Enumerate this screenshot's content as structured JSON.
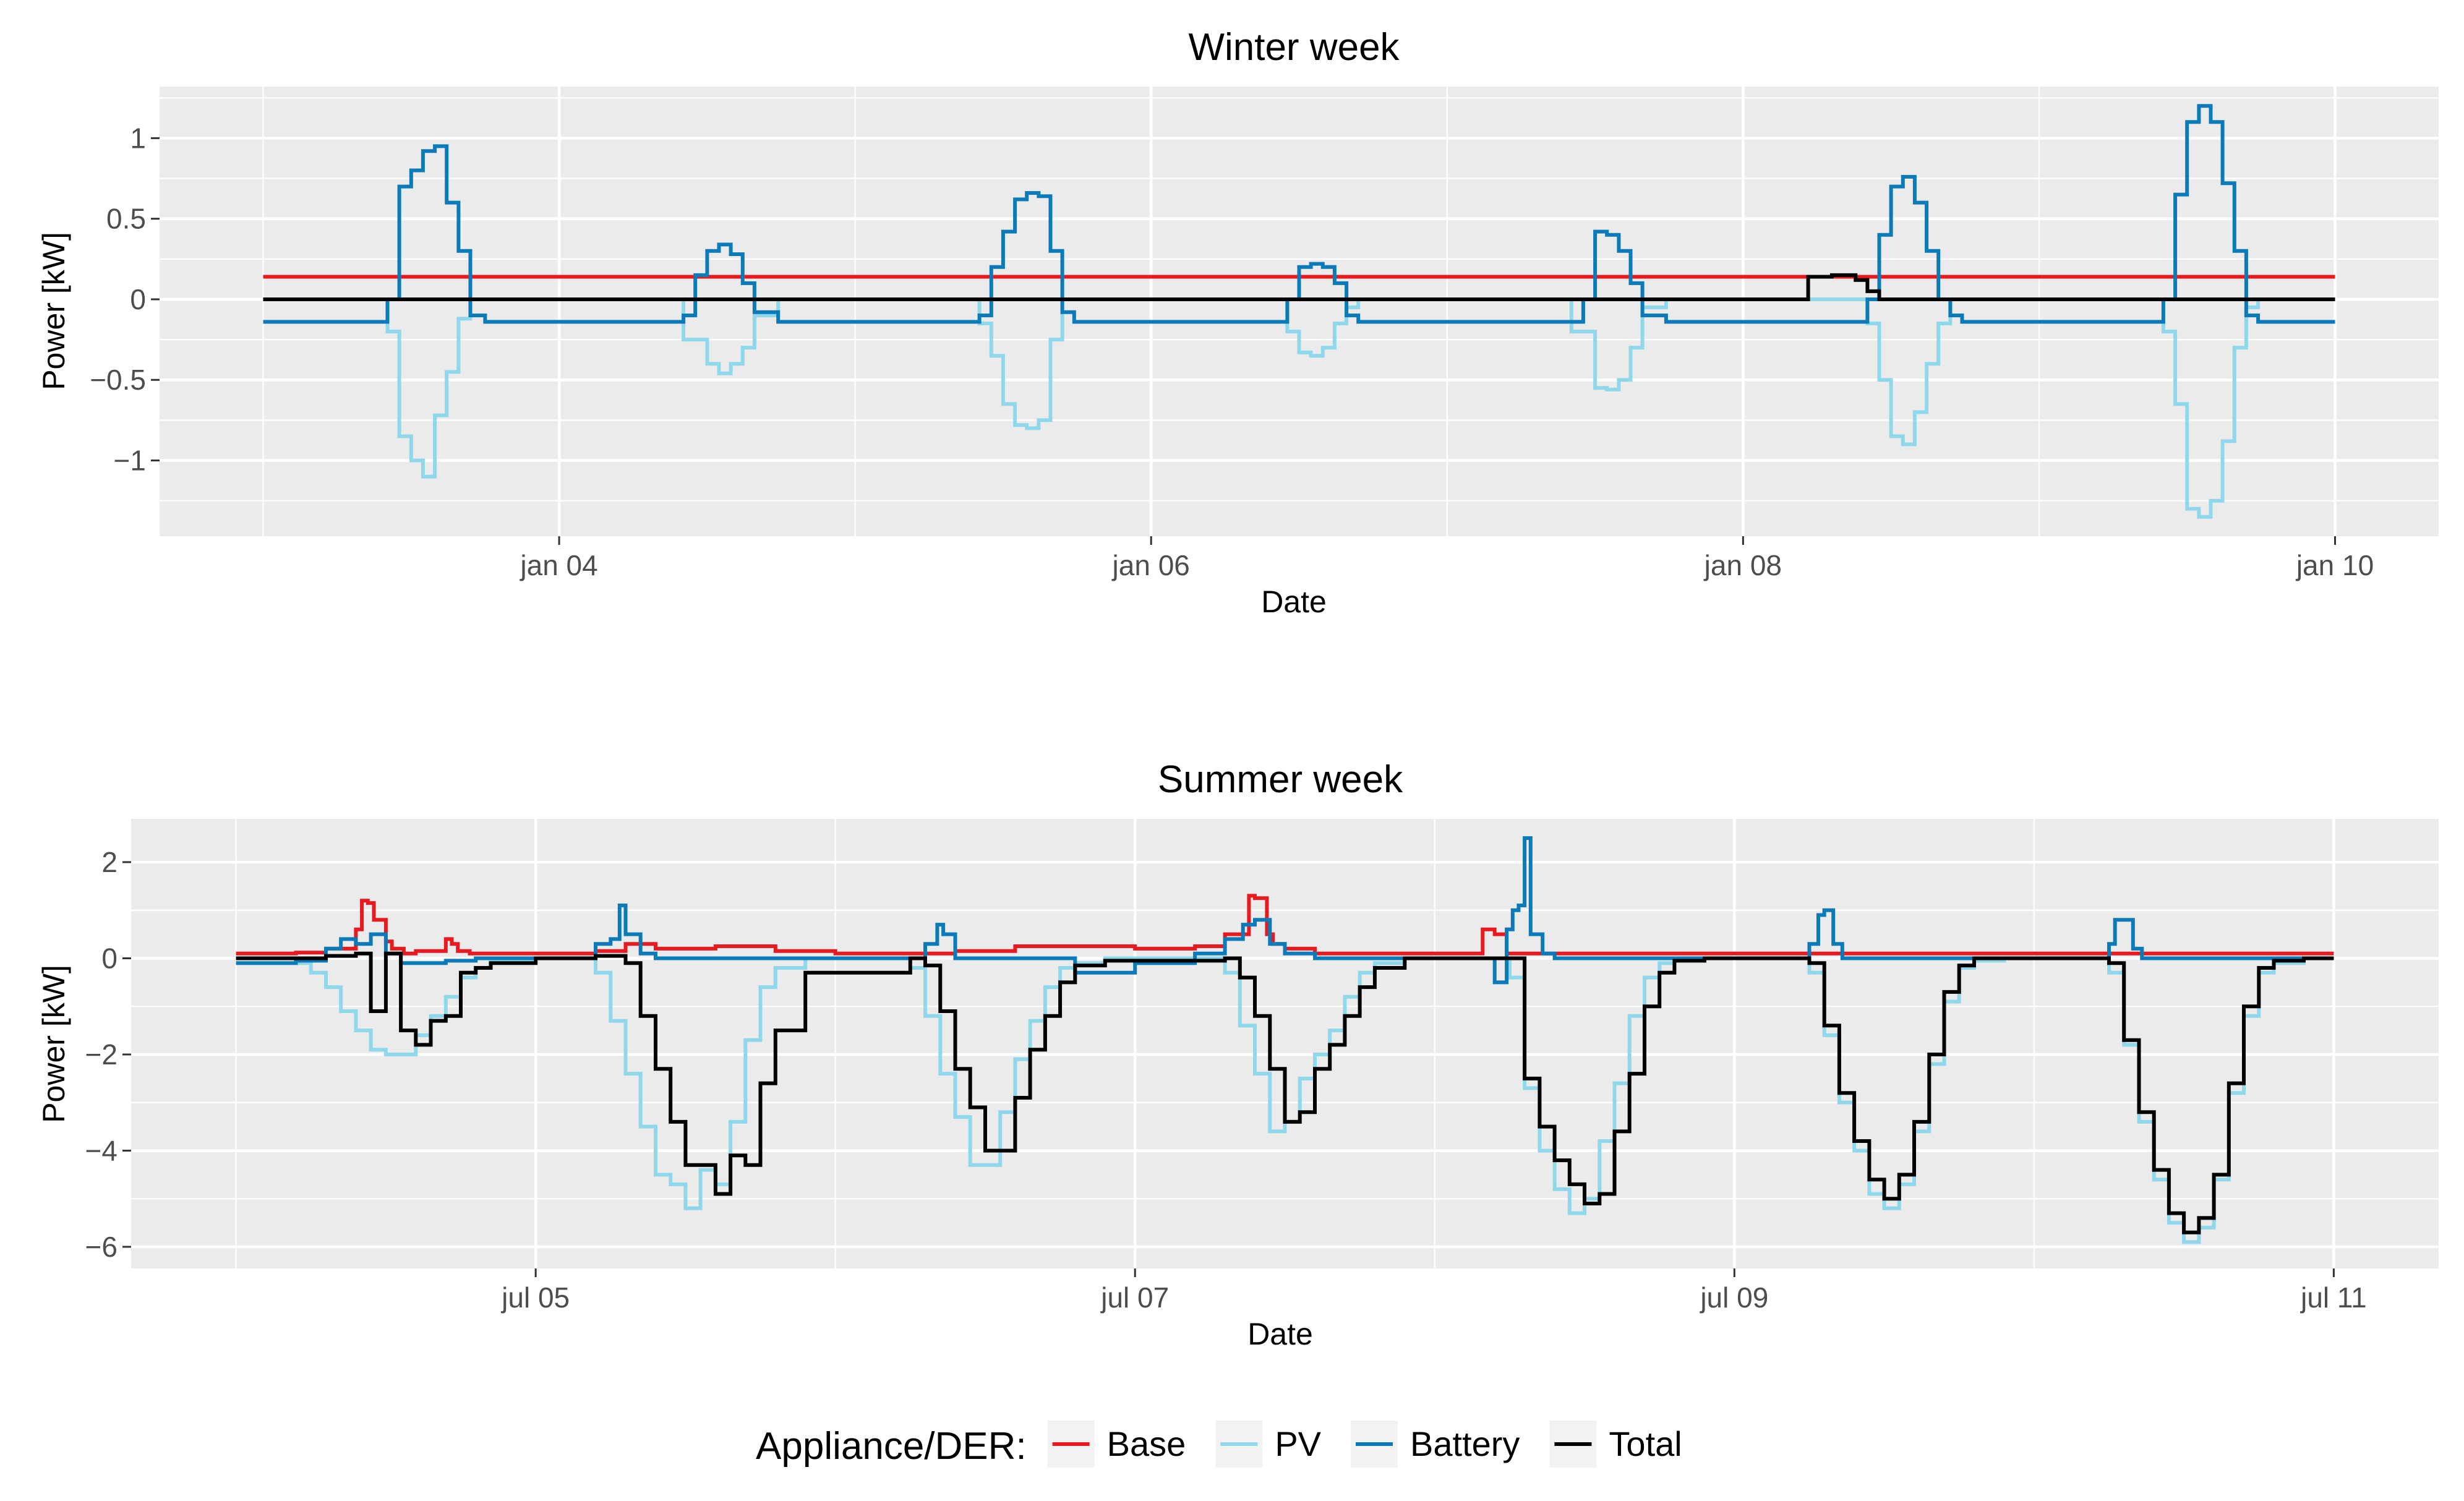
{
  "colors": {
    "panel_bg": "#EBEBEB",
    "grid": "#FFFFFF",
    "axis_text": "#4D4D4D",
    "Base": "#E8191F",
    "PV": "#8FD8EC",
    "Battery": "#0A7AB8",
    "Total": "#000000"
  },
  "legend": {
    "title": "Appliance/DER:",
    "entries": [
      "Base",
      "PV",
      "Battery",
      "Total"
    ]
  },
  "chart_data": [
    {
      "type": "line",
      "title": "Winter week",
      "xlabel": "Date",
      "ylabel": "Power [kW]",
      "xlim": [
        -0.35,
        7.35
      ],
      "ylim": [
        -1.47,
        1.32
      ],
      "x_unit": "days since jan 03 00:00",
      "x_ticks": [
        1,
        3,
        5,
        7
      ],
      "x_tick_labels": [
        "jan 04",
        "jan 06",
        "jan 08",
        "jan 10"
      ],
      "y_ticks": [
        -1,
        -0.5,
        0,
        0.5,
        1
      ],
      "y_tick_labels": [
        "−1",
        "−0.5",
        "0",
        "0.5",
        "1"
      ],
      "series": [
        {
          "name": "Base",
          "x": [
            0,
            7
          ],
          "y": [
            0.14,
            0.14
          ]
        },
        {
          "name": "PV",
          "x": [
            0,
            0.42,
            0.46,
            0.5,
            0.54,
            0.58,
            0.62,
            0.66,
            0.7,
            0.74,
            1.42,
            1.5,
            1.54,
            1.58,
            1.62,
            1.66,
            1.74,
            2.42,
            2.46,
            2.5,
            2.54,
            2.58,
            2.62,
            2.66,
            2.7,
            2.74,
            3.46,
            3.5,
            3.54,
            3.58,
            3.62,
            3.66,
            3.7,
            4.42,
            4.5,
            4.54,
            4.58,
            4.62,
            4.66,
            4.74,
            5.42,
            5.46,
            5.5,
            5.54,
            5.58,
            5.62,
            5.66,
            5.7,
            5.74,
            6.42,
            6.46,
            6.5,
            6.54,
            6.58,
            6.62,
            6.66,
            6.7,
            6.74,
            7
          ],
          "y": [
            0,
            -0.2,
            -0.85,
            -1.0,
            -1.1,
            -0.72,
            -0.45,
            -0.12,
            0,
            0,
            -0.25,
            -0.4,
            -0.46,
            -0.4,
            -0.3,
            -0.1,
            0,
            -0.15,
            -0.35,
            -0.65,
            -0.78,
            -0.8,
            -0.75,
            -0.25,
            0,
            0,
            -0.2,
            -0.33,
            -0.35,
            -0.3,
            -0.15,
            -0.05,
            0,
            -0.2,
            -0.55,
            -0.56,
            -0.5,
            -0.3,
            -0.05,
            0,
            -0.15,
            -0.5,
            -0.85,
            -0.9,
            -0.7,
            -0.4,
            -0.15,
            0,
            0,
            -0.2,
            -0.65,
            -1.3,
            -1.35,
            -1.25,
            -0.88,
            -0.3,
            -0.05,
            0,
            0
          ]
        },
        {
          "name": "Battery",
          "x": [
            0,
            0.4,
            0.42,
            0.46,
            0.5,
            0.54,
            0.58,
            0.62,
            0.66,
            0.7,
            0.75,
            1.42,
            1.46,
            1.5,
            1.54,
            1.58,
            1.62,
            1.66,
            1.74,
            2.42,
            2.46,
            2.5,
            2.54,
            2.58,
            2.62,
            2.66,
            2.7,
            2.74,
            3.46,
            3.5,
            3.54,
            3.58,
            3.62,
            3.66,
            3.7,
            4.46,
            4.5,
            4.54,
            4.58,
            4.62,
            4.66,
            4.74,
            5.42,
            5.46,
            5.5,
            5.54,
            5.58,
            5.62,
            5.66,
            5.7,
            5.74,
            6.42,
            6.46,
            6.5,
            6.54,
            6.58,
            6.62,
            6.66,
            6.7,
            6.74,
            7
          ],
          "y": [
            -0.14,
            -0.14,
            0.0,
            0.7,
            0.8,
            0.92,
            0.95,
            0.6,
            0.3,
            -0.1,
            -0.14,
            -0.1,
            0.15,
            0.3,
            0.34,
            0.28,
            0.1,
            -0.08,
            -0.14,
            -0.1,
            0.2,
            0.42,
            0.62,
            0.66,
            0.64,
            0.3,
            -0.08,
            -0.14,
            0.0,
            0.2,
            0.22,
            0.2,
            0.1,
            -0.1,
            -0.14,
            0.0,
            0.42,
            0.4,
            0.3,
            0.1,
            -0.1,
            -0.14,
            0.0,
            0.4,
            0.7,
            0.76,
            0.6,
            0.3,
            0.0,
            -0.1,
            -0.14,
            0.0,
            0.65,
            1.1,
            1.2,
            1.1,
            0.72,
            0.3,
            -0.1,
            -0.14,
            -0.14
          ]
        },
        {
          "name": "Total",
          "x": [
            0,
            5.2,
            5.22,
            5.3,
            5.36,
            5.38,
            5.42,
            5.46,
            7
          ],
          "y": [
            0,
            0,
            0.14,
            0.15,
            0.15,
            0.12,
            0.05,
            0,
            0
          ]
        }
      ]
    },
    {
      "type": "line",
      "title": "Summer week",
      "xlabel": "Date",
      "ylabel": "Power [kW]",
      "xlim": [
        -0.35,
        7.35
      ],
      "ylim": [
        -6.45,
        2.9
      ],
      "x_unit": "days since jul 04 00:00",
      "x_ticks": [
        1,
        3,
        5,
        7
      ],
      "x_tick_labels": [
        "jul 05",
        "jul 07",
        "jul 09",
        "jul 11"
      ],
      "y_ticks": [
        -6,
        -4,
        -2,
        0,
        2
      ],
      "y_tick_labels": [
        "−6",
        "−4",
        "−2",
        "0",
        "2"
      ],
      "series": [
        {
          "name": "Base",
          "x": [
            0,
            0.2,
            0.3,
            0.4,
            0.42,
            0.44,
            0.46,
            0.5,
            0.52,
            0.56,
            0.6,
            0.7,
            0.72,
            0.74,
            0.78,
            1.2,
            1.3,
            1.4,
            1.6,
            1.8,
            2.0,
            2.4,
            2.6,
            3.0,
            3.2,
            3.3,
            3.38,
            3.4,
            3.44,
            3.46,
            3.5,
            3.6,
            4.0,
            4.16,
            4.2,
            4.24,
            4.3,
            7
          ],
          "y": [
            0.1,
            0.12,
            0.2,
            0.6,
            1.2,
            1.15,
            0.8,
            0.35,
            0.2,
            0.1,
            0.15,
            0.4,
            0.3,
            0.15,
            0.1,
            0.15,
            0.3,
            0.2,
            0.25,
            0.15,
            0.1,
            0.15,
            0.25,
            0.2,
            0.25,
            0.5,
            1.3,
            1.25,
            0.5,
            0.3,
            0.2,
            0.1,
            0.1,
            0.6,
            0.5,
            0.1,
            0.1,
            0.1
          ]
        },
        {
          "name": "PV",
          "x": [
            0,
            0.2,
            0.25,
            0.3,
            0.35,
            0.4,
            0.45,
            0.5,
            0.6,
            0.65,
            0.7,
            0.75,
            0.8,
            0.85,
            1.0,
            1.2,
            1.25,
            1.3,
            1.35,
            1.4,
            1.45,
            1.5,
            1.55,
            1.6,
            1.65,
            1.7,
            1.75,
            1.8,
            1.9,
            2.25,
            2.3,
            2.35,
            2.4,
            2.45,
            2.5,
            2.55,
            2.6,
            2.65,
            2.7,
            2.75,
            2.8,
            2.9,
            3.3,
            3.35,
            3.4,
            3.45,
            3.5,
            3.55,
            3.6,
            3.65,
            3.7,
            3.75,
            3.8,
            3.9,
            4.25,
            4.3,
            4.35,
            4.4,
            4.45,
            4.5,
            4.55,
            4.6,
            4.65,
            4.7,
            4.75,
            4.8,
            4.9,
            5.25,
            5.3,
            5.35,
            5.4,
            5.45,
            5.5,
            5.55,
            5.6,
            5.65,
            5.7,
            5.75,
            5.8,
            5.9,
            6.25,
            6.3,
            6.35,
            6.4,
            6.45,
            6.5,
            6.55,
            6.6,
            6.65,
            6.7,
            6.75,
            6.8,
            6.9,
            7
          ],
          "y": [
            0,
            -0.1,
            -0.3,
            -0.6,
            -1.1,
            -1.5,
            -1.9,
            -2.0,
            -1.6,
            -1.2,
            -0.8,
            -0.4,
            -0.2,
            -0.05,
            0,
            -0.3,
            -1.3,
            -2.4,
            -3.5,
            -4.5,
            -4.7,
            -5.2,
            -4.4,
            -4.7,
            -3.4,
            -1.7,
            -0.6,
            -0.2,
            0,
            -0.2,
            -1.2,
            -2.4,
            -3.3,
            -4.3,
            -4.3,
            -3.2,
            -2.1,
            -1.3,
            -0.6,
            -0.2,
            -0.1,
            0,
            -0.3,
            -1.4,
            -2.4,
            -3.6,
            -3.4,
            -2.5,
            -2.0,
            -1.5,
            -0.8,
            -0.3,
            -0.1,
            0,
            -0.4,
            -2.7,
            -4.0,
            -4.8,
            -5.3,
            -5.0,
            -3.8,
            -2.6,
            -1.2,
            -0.4,
            -0.1,
            0,
            0,
            -0.3,
            -1.6,
            -3.0,
            -4.0,
            -4.9,
            -5.2,
            -4.7,
            -3.6,
            -2.2,
            -0.9,
            -0.2,
            -0.05,
            0,
            -0.3,
            -1.8,
            -3.4,
            -4.6,
            -5.5,
            -5.9,
            -5.6,
            -4.6,
            -2.8,
            -1.2,
            -0.3,
            -0.1,
            0,
            0
          ]
        },
        {
          "name": "Battery",
          "x": [
            0,
            0.2,
            0.3,
            0.35,
            0.4,
            0.45,
            0.5,
            0.55,
            0.6,
            0.7,
            0.8,
            1.0,
            1.2,
            1.25,
            1.28,
            1.3,
            1.35,
            1.4,
            2.2,
            2.3,
            2.34,
            2.36,
            2.4,
            2.8,
            3.0,
            3.2,
            3.3,
            3.36,
            3.4,
            3.45,
            3.5,
            3.6,
            4.0,
            4.2,
            4.24,
            4.26,
            4.28,
            4.3,
            4.32,
            4.36,
            4.4,
            5.2,
            5.25,
            5.28,
            5.3,
            5.33,
            5.36,
            5.4,
            6.2,
            6.25,
            6.27,
            6.3,
            6.33,
            6.36,
            6.4,
            7
          ],
          "y": [
            -0.1,
            -0.05,
            0.2,
            0.4,
            0.3,
            0.5,
            0.1,
            -0.1,
            -0.1,
            -0.05,
            0,
            0,
            0.3,
            0.4,
            1.1,
            0.5,
            0.1,
            0,
            0,
            0.3,
            0.7,
            0.5,
            0,
            -0.3,
            -0.1,
            0.1,
            0.4,
            0.7,
            0.8,
            0.3,
            0.1,
            0,
            0,
            -0.5,
            0.6,
            1.0,
            1.1,
            2.5,
            0.5,
            0.1,
            0,
            0,
            0.3,
            0.9,
            1.0,
            0.3,
            0,
            0,
            0,
            0.3,
            0.8,
            0.8,
            0.2,
            0,
            0,
            0
          ]
        },
        {
          "name": "Total",
          "x": [
            0,
            0.2,
            0.3,
            0.4,
            0.45,
            0.5,
            0.55,
            0.6,
            0.65,
            0.7,
            0.75,
            0.8,
            0.85,
            1.0,
            1.2,
            1.25,
            1.3,
            1.35,
            1.4,
            1.45,
            1.5,
            1.55,
            1.6,
            1.65,
            1.7,
            1.75,
            1.8,
            1.9,
            2.25,
            2.3,
            2.35,
            2.4,
            2.45,
            2.5,
            2.55,
            2.6,
            2.65,
            2.7,
            2.75,
            2.8,
            2.9,
            3.3,
            3.35,
            3.4,
            3.45,
            3.5,
            3.55,
            3.6,
            3.65,
            3.7,
            3.75,
            3.8,
            3.9,
            4.25,
            4.3,
            4.35,
            4.4,
            4.45,
            4.5,
            4.55,
            4.6,
            4.65,
            4.7,
            4.75,
            4.8,
            4.9,
            5.25,
            5.3,
            5.35,
            5.4,
            5.45,
            5.5,
            5.55,
            5.6,
            5.65,
            5.7,
            5.75,
            5.8,
            5.9,
            6.25,
            6.3,
            6.35,
            6.4,
            6.45,
            6.5,
            6.55,
            6.6,
            6.65,
            6.7,
            6.75,
            6.8,
            6.9,
            7
          ],
          "y": [
            0,
            0,
            0.05,
            0.1,
            -1.1,
            0.1,
            -1.5,
            -1.8,
            -1.3,
            -1.2,
            -0.3,
            -0.2,
            -0.1,
            0,
            0.05,
            0.05,
            -0.1,
            -1.2,
            -2.3,
            -3.4,
            -4.3,
            -4.3,
            -4.9,
            -4.1,
            -4.3,
            -2.6,
            -1.5,
            -0.3,
            0,
            -0.15,
            -1.1,
            -2.3,
            -3.1,
            -4.0,
            -4.0,
            -2.9,
            -1.9,
            -1.2,
            -0.5,
            -0.15,
            -0.05,
            0,
            -0.4,
            -1.2,
            -2.3,
            -3.4,
            -3.2,
            -2.3,
            -1.8,
            -1.2,
            -0.6,
            -0.2,
            0,
            0,
            -2.5,
            -3.5,
            -4.2,
            -4.7,
            -5.1,
            -4.9,
            -3.6,
            -2.4,
            -1.0,
            -0.3,
            -0.05,
            0,
            -0.1,
            -1.4,
            -2.8,
            -3.8,
            -4.6,
            -5.0,
            -4.5,
            -3.4,
            -2.0,
            -0.7,
            -0.15,
            0,
            0,
            -0.1,
            -1.7,
            -3.2,
            -4.4,
            -5.3,
            -5.7,
            -5.4,
            -4.5,
            -2.6,
            -1.0,
            -0.2,
            -0.05,
            0,
            0
          ]
        }
      ]
    }
  ]
}
